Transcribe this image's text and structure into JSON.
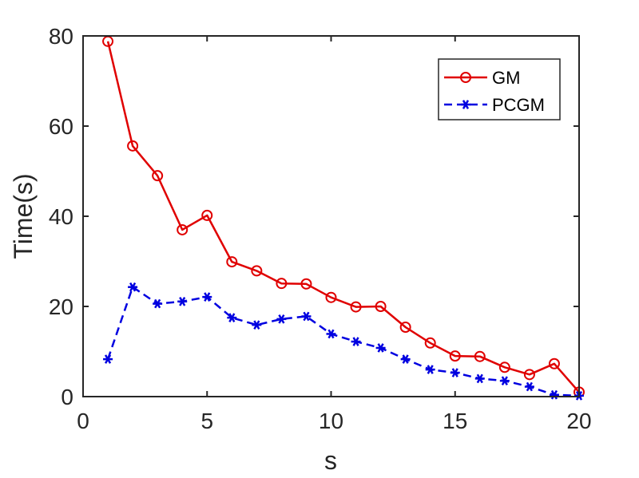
{
  "chart_data": {
    "type": "line",
    "xlabel": "s",
    "ylabel": "Time(s)",
    "xlim": [
      0,
      20
    ],
    "ylim": [
      0,
      80
    ],
    "xticks": [
      0,
      5,
      10,
      15,
      20
    ],
    "yticks": [
      0,
      20,
      40,
      60,
      80
    ],
    "grid": false,
    "legend_position": "top-right",
    "x": [
      1,
      2,
      3,
      4,
      5,
      6,
      7,
      8,
      9,
      10,
      11,
      12,
      13,
      14,
      15,
      16,
      17,
      18,
      19,
      20
    ],
    "series": [
      {
        "name": "GM",
        "color": "#e00000",
        "line_style": "solid",
        "marker": "circle",
        "values": [
          78.8,
          55.6,
          49.0,
          37.0,
          40.2,
          29.9,
          27.9,
          25.1,
          25.0,
          22.0,
          19.9,
          20.0,
          15.4,
          11.9,
          9.0,
          8.9,
          6.5,
          4.9,
          7.3,
          1.0
        ]
      },
      {
        "name": "PCGM",
        "color": "#0000e0",
        "line_style": "dashed",
        "marker": "asterisk",
        "values": [
          8.3,
          24.3,
          20.6,
          21.1,
          22.1,
          17.5,
          15.9,
          17.2,
          17.8,
          13.9,
          12.2,
          10.8,
          8.3,
          6.0,
          5.3,
          4.0,
          3.5,
          2.2,
          0.4,
          0.2
        ]
      }
    ]
  }
}
